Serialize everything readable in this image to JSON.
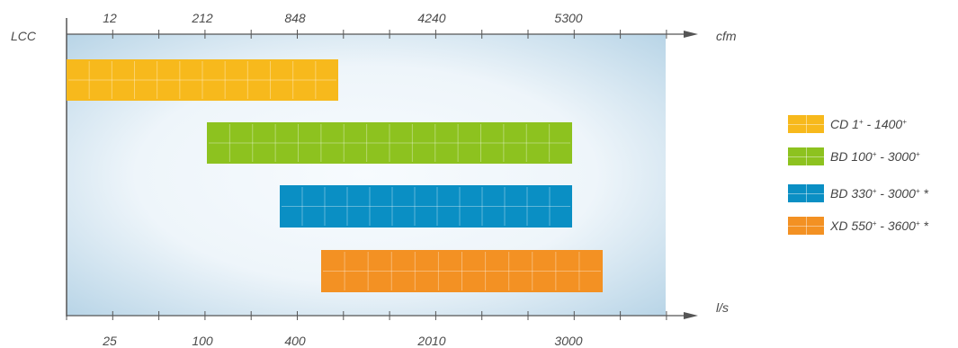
{
  "chart_data": {
    "type": "bar",
    "orientation": "horizontal-range",
    "y_axis_label": "LCC",
    "top_axis": {
      "unit": "cfm",
      "tick_labels": [
        "12",
        "212",
        "848",
        "4240",
        "5300"
      ]
    },
    "bottom_axis": {
      "unit": "l/s",
      "tick_labels": [
        "25",
        "100",
        "400",
        "2010",
        "3000"
      ]
    },
    "series": [
      {
        "name": "CD",
        "min": "1",
        "max": "1400",
        "note": "",
        "color": "#f7b91c"
      },
      {
        "name": "BD",
        "min": "100",
        "max": "3000",
        "note": "",
        "color": "#8dc21f"
      },
      {
        "name": "BD",
        "min": "330",
        "max": "3000",
        "note": "*",
        "color": "#0a8fc4"
      },
      {
        "name": "XD",
        "min": "550",
        "max": "3600",
        "note": "*",
        "color": "#f39123"
      }
    ],
    "legend": {
      "placement": "right",
      "items": [
        {
          "prefix": "CD",
          "low": "1",
          "sep": "-",
          "high": "1400",
          "note": ""
        },
        {
          "prefix": "BD",
          "low": "100",
          "sep": "-",
          "high": "3000",
          "note": ""
        },
        {
          "prefix": "BD",
          "low": "330",
          "sep": "-",
          "high": "3000",
          "note": "*"
        },
        {
          "prefix": "XD",
          "low": "550",
          "sep": "-",
          "high": "3600",
          "note": "*"
        }
      ]
    },
    "colors": {
      "plot_edge": "#b7d3e5",
      "plot_center": "#f3f8fc",
      "axis": "#555555"
    }
  }
}
